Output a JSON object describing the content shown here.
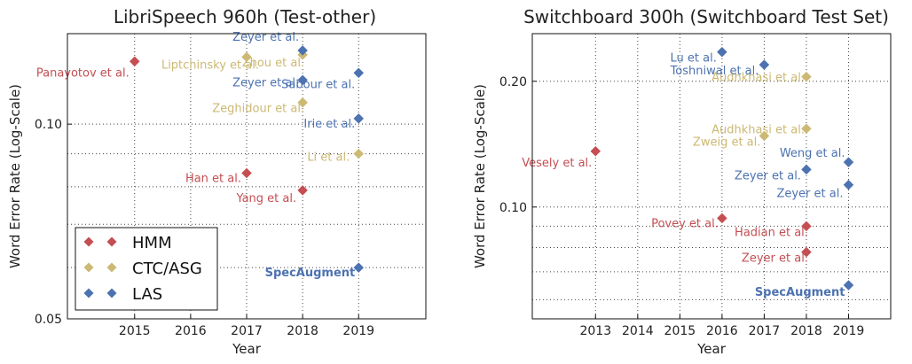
{
  "colors": {
    "HMM": "#c44e52",
    "CTC/ASG": "#ccb974",
    "LAS": "#4c72b0",
    "grid": "#444444"
  },
  "legend": {
    "entries": [
      "HMM",
      "CTC/ASG",
      "LAS"
    ]
  },
  "chart_data": [
    {
      "type": "scatter",
      "title": "LibriSpeech 960h (Test-other)",
      "xlabel": "Year",
      "ylabel": "Word Error Rate (Log-Scale)",
      "yscale": "log",
      "xlim": [
        2013.8,
        2020.2
      ],
      "ylim": [
        0.05,
        0.138
      ],
      "xticks": [
        2015,
        2016,
        2017,
        2018,
        2019
      ],
      "xtick_labels": [
        "2015",
        "2016",
        "2017",
        "2018",
        "2019"
      ],
      "yticks": [
        0.05,
        0.1
      ],
      "ytick_labels": [
        "0.05",
        "0.10"
      ],
      "minor_yticks": [
        0.06,
        0.07,
        0.08,
        0.09
      ],
      "grid": true,
      "legend_position": "lower-left",
      "points": [
        {
          "x": 2015,
          "y": 0.125,
          "series": "HMM",
          "label": "Panayotov et al."
        },
        {
          "x": 2017,
          "y": 0.084,
          "series": "HMM",
          "label": "Han et al."
        },
        {
          "x": 2018,
          "y": 0.079,
          "series": "HMM",
          "label": "Yang et al."
        },
        {
          "x": 2017,
          "y": 0.127,
          "series": "CTC/ASG",
          "label": "Liptchinsky et al."
        },
        {
          "x": 2018,
          "y": 0.128,
          "series": "CTC/ASG",
          "label": "Zhou et al."
        },
        {
          "x": 2018,
          "y": 0.108,
          "series": "CTC/ASG",
          "label": "Zeghidour et al."
        },
        {
          "x": 2019,
          "y": 0.09,
          "series": "CTC/ASG",
          "label": "Li et al."
        },
        {
          "x": 2018,
          "y": 0.13,
          "series": "LAS",
          "label": "Zeyer et al."
        },
        {
          "x": 2018,
          "y": 0.117,
          "series": "LAS",
          "label": "Zeyer et al."
        },
        {
          "x": 2019,
          "y": 0.12,
          "series": "LAS",
          "label": "Sabour et al."
        },
        {
          "x": 2019,
          "y": 0.102,
          "series": "LAS",
          "label": "Irie et al."
        },
        {
          "x": 2019,
          "y": 0.06,
          "series": "LAS",
          "label": "SpecAugment",
          "bold": true
        }
      ]
    },
    {
      "type": "scatter",
      "title": "Switchboard 300h (Switchboard Test Set)",
      "xlabel": "Year",
      "ylabel": "Word Error Rate (Log-Scale)",
      "yscale": "log",
      "xlim": [
        2011.5,
        2020.0
      ],
      "ylim": [
        0.054,
        0.26
      ],
      "xticks": [
        2013,
        2014,
        2015,
        2016,
        2017,
        2018,
        2019
      ],
      "xtick_labels": [
        "2013",
        "2014",
        "2015",
        "2016",
        "2017",
        "2018",
        "2019"
      ],
      "yticks": [
        0.1,
        0.2
      ],
      "ytick_labels": [
        "0.10",
        "0.20"
      ],
      "minor_yticks": [
        0.06,
        0.07,
        0.08,
        0.09
      ],
      "grid": true,
      "points": [
        {
          "x": 2013,
          "y": 0.136,
          "series": "HMM",
          "label": "Vesely et al."
        },
        {
          "x": 2016,
          "y": 0.094,
          "series": "HMM",
          "label": "Povey et al."
        },
        {
          "x": 2018,
          "y": 0.09,
          "series": "HMM",
          "label": "Hadian et al."
        },
        {
          "x": 2018,
          "y": 0.078,
          "series": "HMM",
          "label": "Zeyer et al."
        },
        {
          "x": 2018,
          "y": 0.205,
          "series": "CTC/ASG",
          "label": "Audhkhasi et al."
        },
        {
          "x": 2018,
          "y": 0.154,
          "series": "CTC/ASG",
          "label": "Audhkhasi et al."
        },
        {
          "x": 2017,
          "y": 0.148,
          "series": "CTC/ASG",
          "label": "Zweig et al."
        },
        {
          "x": 2016,
          "y": 0.235,
          "series": "LAS",
          "label": "Lu et al."
        },
        {
          "x": 2017,
          "y": 0.219,
          "series": "LAS",
          "label": "Toshniwal et al."
        },
        {
          "x": 2018,
          "y": 0.123,
          "series": "LAS",
          "label": "Zeyer et al."
        },
        {
          "x": 2019,
          "y": 0.128,
          "series": "LAS",
          "label": "Weng et al."
        },
        {
          "x": 2019,
          "y": 0.113,
          "series": "LAS",
          "label": "Zeyer et al."
        },
        {
          "x": 2019,
          "y": 0.065,
          "series": "LAS",
          "label": "SpecAugment",
          "bold": true
        }
      ]
    }
  ]
}
